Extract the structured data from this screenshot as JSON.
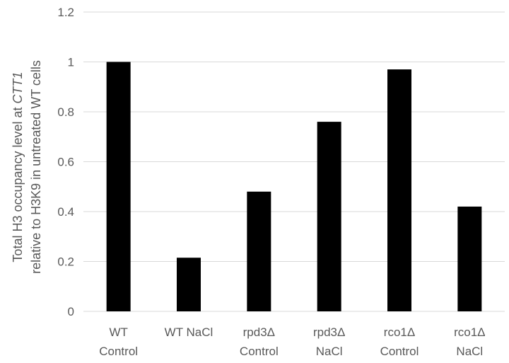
{
  "chart_data": {
    "type": "bar",
    "categories": [
      [
        "WT",
        "Control"
      ],
      [
        "WT NaCl"
      ],
      [
        "rpd3Δ",
        "Control"
      ],
      [
        "rpd3Δ",
        "NaCl"
      ],
      [
        "rco1Δ",
        "Control"
      ],
      [
        "rco1Δ",
        "NaCl"
      ]
    ],
    "values": [
      1.0,
      0.215,
      0.48,
      0.76,
      0.97,
      0.42
    ],
    "ylabel_line1": "Total H3 occupancy level at ",
    "ylabel_line1_italic": "CTT1",
    "ylabel_line2": "relative to H3K9 in untreated WT cells",
    "ylim": [
      0,
      1.2
    ],
    "yticks": [
      "0",
      "0.2",
      "0.4",
      "0.6",
      "0.8",
      "1",
      "1.2"
    ],
    "grid": true,
    "bar_color": "#000000",
    "grid_color": "#d9d9d9",
    "text_color": "#595959"
  }
}
